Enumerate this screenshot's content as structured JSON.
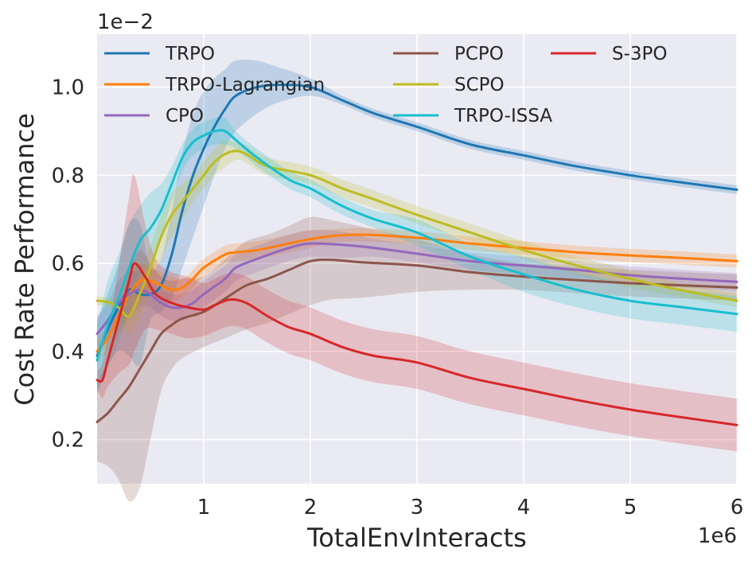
{
  "chart_data": {
    "type": "line",
    "title": "",
    "xlabel": "TotalEnvInteracts",
    "ylabel": "Cost Rate Performance",
    "x_offset_label": "1e6",
    "y_offset_label": "1e−2",
    "xlim": [
      0.0,
      6.0
    ],
    "ylim": [
      0.1,
      1.12
    ],
    "xticks": [
      1,
      2,
      3,
      4,
      5,
      6
    ],
    "xtick_labels": [
      "1",
      "2",
      "3",
      "4",
      "5",
      "6"
    ],
    "yticks": [
      0.2,
      0.4,
      0.6,
      0.8,
      1.0
    ],
    "ytick_labels": [
      "0.2",
      "0.4",
      "0.6",
      "0.8",
      "1.0"
    ],
    "grid": true,
    "legend": "top, 3 columns",
    "series": [
      {
        "name": "TRPO",
        "color": "#1f77b4",
        "x": [
          0.0,
          0.1,
          0.2,
          0.3,
          0.4,
          0.5,
          0.6,
          0.7,
          0.8,
          0.9,
          1.0,
          1.1,
          1.2,
          1.3,
          1.5,
          1.7,
          2.0,
          2.3,
          2.6,
          3.0,
          3.5,
          4.0,
          4.5,
          5.0,
          5.5,
          6.0
        ],
        "y": [
          0.39,
          0.45,
          0.5,
          0.54,
          0.53,
          0.53,
          0.55,
          0.62,
          0.72,
          0.8,
          0.86,
          0.91,
          0.95,
          0.98,
          1.0,
          1.005,
          1.0,
          0.97,
          0.94,
          0.91,
          0.87,
          0.845,
          0.82,
          0.8,
          0.783,
          0.767
        ],
        "band": [
          0.08,
          0.08,
          0.1,
          0.15,
          0.16,
          0.06,
          0.06,
          0.1,
          0.13,
          0.14,
          0.13,
          0.11,
          0.09,
          0.08,
          0.06,
          0.04,
          0.02,
          0.01,
          0.01,
          0.01,
          0.01,
          0.01,
          0.01,
          0.01,
          0.01,
          0.01
        ]
      },
      {
        "name": "TRPO-Lagrangian",
        "color": "#ff7f0e",
        "x": [
          0.0,
          0.1,
          0.2,
          0.3,
          0.4,
          0.5,
          0.6,
          0.7,
          0.8,
          0.9,
          1.0,
          1.2,
          1.3,
          1.5,
          1.8,
          2.0,
          2.2,
          2.5,
          3.0,
          3.5,
          4.0,
          4.5,
          5.0,
          5.5,
          6.0
        ],
        "y": [
          0.4,
          0.43,
          0.48,
          0.53,
          0.56,
          0.56,
          0.55,
          0.54,
          0.545,
          0.565,
          0.59,
          0.62,
          0.625,
          0.63,
          0.645,
          0.655,
          0.662,
          0.665,
          0.658,
          0.645,
          0.635,
          0.625,
          0.618,
          0.612,
          0.605
        ],
        "band": [
          0.03,
          0.03,
          0.04,
          0.05,
          0.04,
          0.03,
          0.03,
          0.03,
          0.02,
          0.02,
          0.02,
          0.02,
          0.02,
          0.02,
          0.02,
          0.02,
          0.015,
          0.015,
          0.015,
          0.015,
          0.015,
          0.015,
          0.015,
          0.015,
          0.015
        ]
      },
      {
        "name": "CPO",
        "color": "#9467bd",
        "x": [
          0.0,
          0.1,
          0.2,
          0.3,
          0.4,
          0.5,
          0.6,
          0.7,
          0.8,
          0.9,
          1.0,
          1.2,
          1.3,
          1.5,
          1.8,
          2.0,
          2.3,
          2.6,
          3.0,
          3.5,
          4.0,
          4.5,
          5.0,
          5.5,
          6.0
        ],
        "y": [
          0.44,
          0.47,
          0.51,
          0.53,
          0.54,
          0.53,
          0.51,
          0.5,
          0.5,
          0.51,
          0.53,
          0.565,
          0.59,
          0.61,
          0.635,
          0.645,
          0.642,
          0.635,
          0.622,
          0.605,
          0.595,
          0.585,
          0.573,
          0.565,
          0.558
        ],
        "band": [
          0.04,
          0.04,
          0.05,
          0.05,
          0.04,
          0.03,
          0.03,
          0.03,
          0.03,
          0.03,
          0.03,
          0.03,
          0.03,
          0.03,
          0.03,
          0.03,
          0.03,
          0.02,
          0.02,
          0.02,
          0.02,
          0.02,
          0.02,
          0.02,
          0.02
        ]
      },
      {
        "name": "PCPO",
        "color": "#8c564b",
        "x": [
          0.0,
          0.1,
          0.2,
          0.3,
          0.4,
          0.5,
          0.6,
          0.7,
          0.8,
          1.0,
          1.2,
          1.4,
          1.6,
          1.8,
          2.0,
          2.2,
          2.5,
          3.0,
          3.5,
          4.0,
          4.5,
          5.0,
          5.5,
          6.0
        ],
        "y": [
          0.24,
          0.26,
          0.29,
          0.32,
          0.36,
          0.4,
          0.44,
          0.46,
          0.475,
          0.49,
          0.52,
          0.55,
          0.565,
          0.585,
          0.605,
          0.608,
          0.602,
          0.595,
          0.58,
          0.57,
          0.562,
          0.555,
          0.55,
          0.545
        ],
        "band": [
          0.09,
          0.12,
          0.18,
          0.26,
          0.27,
          0.2,
          0.13,
          0.1,
          0.09,
          0.08,
          0.09,
          0.1,
          0.1,
          0.1,
          0.1,
          0.09,
          0.08,
          0.06,
          0.04,
          0.03,
          0.03,
          0.03,
          0.03,
          0.03
        ]
      },
      {
        "name": "SCPO",
        "color": "#bcbd22",
        "x": [
          0.0,
          0.1,
          0.2,
          0.3,
          0.4,
          0.5,
          0.6,
          0.7,
          0.8,
          0.9,
          1.0,
          1.1,
          1.2,
          1.3,
          1.4,
          1.6,
          2.0,
          2.3,
          2.6,
          3.0,
          3.5,
          4.0,
          4.5,
          5.0,
          5.5,
          6.0
        ],
        "y": [
          0.515,
          0.512,
          0.5,
          0.48,
          0.53,
          0.59,
          0.66,
          0.71,
          0.74,
          0.77,
          0.8,
          0.83,
          0.848,
          0.855,
          0.848,
          0.82,
          0.8,
          0.77,
          0.745,
          0.71,
          0.67,
          0.63,
          0.595,
          0.565,
          0.538,
          0.515
        ],
        "band": [
          0.01,
          0.01,
          0.02,
          0.04,
          0.05,
          0.05,
          0.05,
          0.05,
          0.04,
          0.03,
          0.03,
          0.03,
          0.03,
          0.02,
          0.02,
          0.02,
          0.02,
          0.02,
          0.02,
          0.02,
          0.02,
          0.02,
          0.02,
          0.02,
          0.015,
          0.015
        ]
      },
      {
        "name": "TRPO-ISSA",
        "color": "#17becf",
        "x": [
          0.0,
          0.1,
          0.2,
          0.3,
          0.4,
          0.5,
          0.6,
          0.7,
          0.8,
          0.9,
          1.0,
          1.1,
          1.2,
          1.3,
          1.5,
          1.8,
          2.0,
          2.3,
          2.6,
          3.0,
          3.5,
          4.0,
          4.5,
          5.0,
          5.5,
          6.0
        ],
        "y": [
          0.38,
          0.46,
          0.52,
          0.59,
          0.65,
          0.68,
          0.72,
          0.78,
          0.84,
          0.875,
          0.89,
          0.9,
          0.9,
          0.88,
          0.84,
          0.79,
          0.77,
          0.73,
          0.7,
          0.67,
          0.615,
          0.575,
          0.54,
          0.515,
          0.5,
          0.485
        ],
        "band": [
          0.08,
          0.1,
          0.1,
          0.1,
          0.08,
          0.08,
          0.06,
          0.04,
          0.03,
          0.03,
          0.03,
          0.03,
          0.03,
          0.02,
          0.02,
          0.02,
          0.02,
          0.02,
          0.02,
          0.03,
          0.03,
          0.04,
          0.04,
          0.04,
          0.04,
          0.04
        ]
      },
      {
        "name": "S-3PO",
        "color": "#d62728",
        "x": [
          0.0,
          0.05,
          0.1,
          0.2,
          0.3,
          0.35,
          0.45,
          0.55,
          0.7,
          0.85,
          1.0,
          1.1,
          1.25,
          1.4,
          1.6,
          1.8,
          2.0,
          2.3,
          2.6,
          3.0,
          3.5,
          4.0,
          4.5,
          5.0,
          5.5,
          6.0
        ],
        "y": [
          0.335,
          0.335,
          0.38,
          0.47,
          0.56,
          0.6,
          0.57,
          0.53,
          0.51,
          0.5,
          0.495,
          0.505,
          0.518,
          0.51,
          0.48,
          0.455,
          0.44,
          0.41,
          0.39,
          0.375,
          0.34,
          0.315,
          0.29,
          0.268,
          0.25,
          0.233
        ],
        "band": [
          0.02,
          0.04,
          0.06,
          0.12,
          0.19,
          0.2,
          0.12,
          0.08,
          0.07,
          0.07,
          0.06,
          0.06,
          0.06,
          0.06,
          0.06,
          0.06,
          0.06,
          0.06,
          0.06,
          0.06,
          0.06,
          0.06,
          0.06,
          0.06,
          0.06,
          0.06
        ]
      }
    ]
  }
}
